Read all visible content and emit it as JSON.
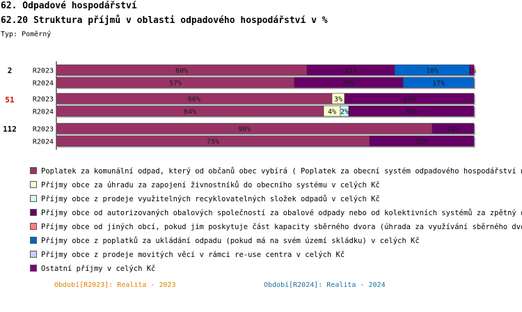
{
  "page": {
    "section_title": "62. Odpadové hospodářství",
    "chart_title": "62.20 Struktura příjmů v oblasti odpadového hospodářství v %",
    "type_label": "Typ: Poměrný"
  },
  "colors": {
    "poplatek_komunalni": "#993366",
    "uhrada_zivnostniku": "#ffffcc",
    "prodej_slozek": "#ccffff",
    "obalove_spolecnosti": "#660066",
    "jine_obce": "#ff8080",
    "poplatky_ukladani": "#0066cc",
    "reuse": "#ccccff",
    "ostatni": "#800080",
    "group_51_label": "#cc0000",
    "period_2023": "#e08000",
    "period_2024": "#2070a0"
  },
  "chart_data": {
    "type": "bar",
    "orientation": "horizontal",
    "stacked": true,
    "unit": "%",
    "xlim": [
      0,
      100
    ],
    "groups": [
      {
        "label": "2",
        "rows": [
          {
            "label": "R2023",
            "values": [
              60,
              0,
              0,
              21,
              0,
              18,
              0,
              1
            ],
            "data_labels": [
              "60%",
              "",
              "",
              "21%",
              "",
              "18%",
              "",
              "1%"
            ]
          },
          {
            "label": "R2024",
            "values": [
              57,
              0,
              0,
              26,
              0,
              17,
              0,
              0
            ],
            "data_labels": [
              "57%",
              "",
              "",
              "26%",
              "",
              "17%",
              "",
              ""
            ]
          }
        ]
      },
      {
        "label": "51",
        "rows": [
          {
            "label": "R2023",
            "values": [
              66,
              3,
              0,
              31,
              0,
              0,
              0,
              0
            ],
            "data_labels": [
              "66%",
              "3%",
              "",
              "31%",
              "",
              "",
              "",
              ""
            ]
          },
          {
            "label": "R2024",
            "values": [
              64,
              4,
              2,
              30,
              0,
              0,
              0,
              0
            ],
            "data_labels": [
              "64%",
              "4%",
              "2%",
              "30%",
              "",
              "",
              "",
              ""
            ]
          }
        ]
      },
      {
        "label": "112",
        "rows": [
          {
            "label": "R2023",
            "values": [
              90,
              0,
              0,
              10,
              0,
              0,
              0,
              0
            ],
            "data_labels": [
              "90%",
              "",
              "",
              "10%",
              "",
              "",
              "",
              ""
            ]
          },
          {
            "label": "R2024",
            "values": [
              75,
              0,
              0,
              25,
              0,
              0,
              0,
              0
            ],
            "data_labels": [
              "75%",
              "",
              "",
              "25%",
              "",
              "",
              "",
              ""
            ]
          }
        ]
      }
    ],
    "series": [
      {
        "key": "poplatek_komunalni",
        "name": "Poplatek za komunální odpad, který od občanů obec vybírá ( Poplatek za obecní systém odpadového hospodářství  nebo"
      },
      {
        "key": "uhrada_zivnostniku",
        "name": "Příjmy obce za úhradu za zapojení živnostníků do obecního systému v celých Kč"
      },
      {
        "key": "prodej_slozek",
        "name": "Příjmy obce z prodeje využitelných recyklovatelných složek odpadů v celých Kč"
      },
      {
        "key": "obalove_spolecnosti",
        "name": "Příjmy obce od autorizovaných obalových společností za obalové odpady nebo od kolektivních systémů za zpětný odběr"
      },
      {
        "key": "jine_obce",
        "name": "Příjmy obce od jiných obcí, pokud jim poskytuje část kapacity sběrného dvora (úhrada za využívání sběrného dvora) v"
      },
      {
        "key": "poplatky_ukladani",
        "name": "Příjmy obce z poplatků za ukládání odpadu (pokud má na svém území skládku) v celých Kč"
      },
      {
        "key": "reuse",
        "name": "Příjmy obce z prodeje movitých věcí v rámci re-use centra v celých Kč"
      },
      {
        "key": "ostatni",
        "name": "Ostatní příjmy v celých Kč"
      }
    ],
    "legend_position": "bottom"
  },
  "footer": {
    "period_2023": "Období[R2023]: Realita - 2023",
    "period_2024": "Období[R2024]: Realita - 2024"
  }
}
